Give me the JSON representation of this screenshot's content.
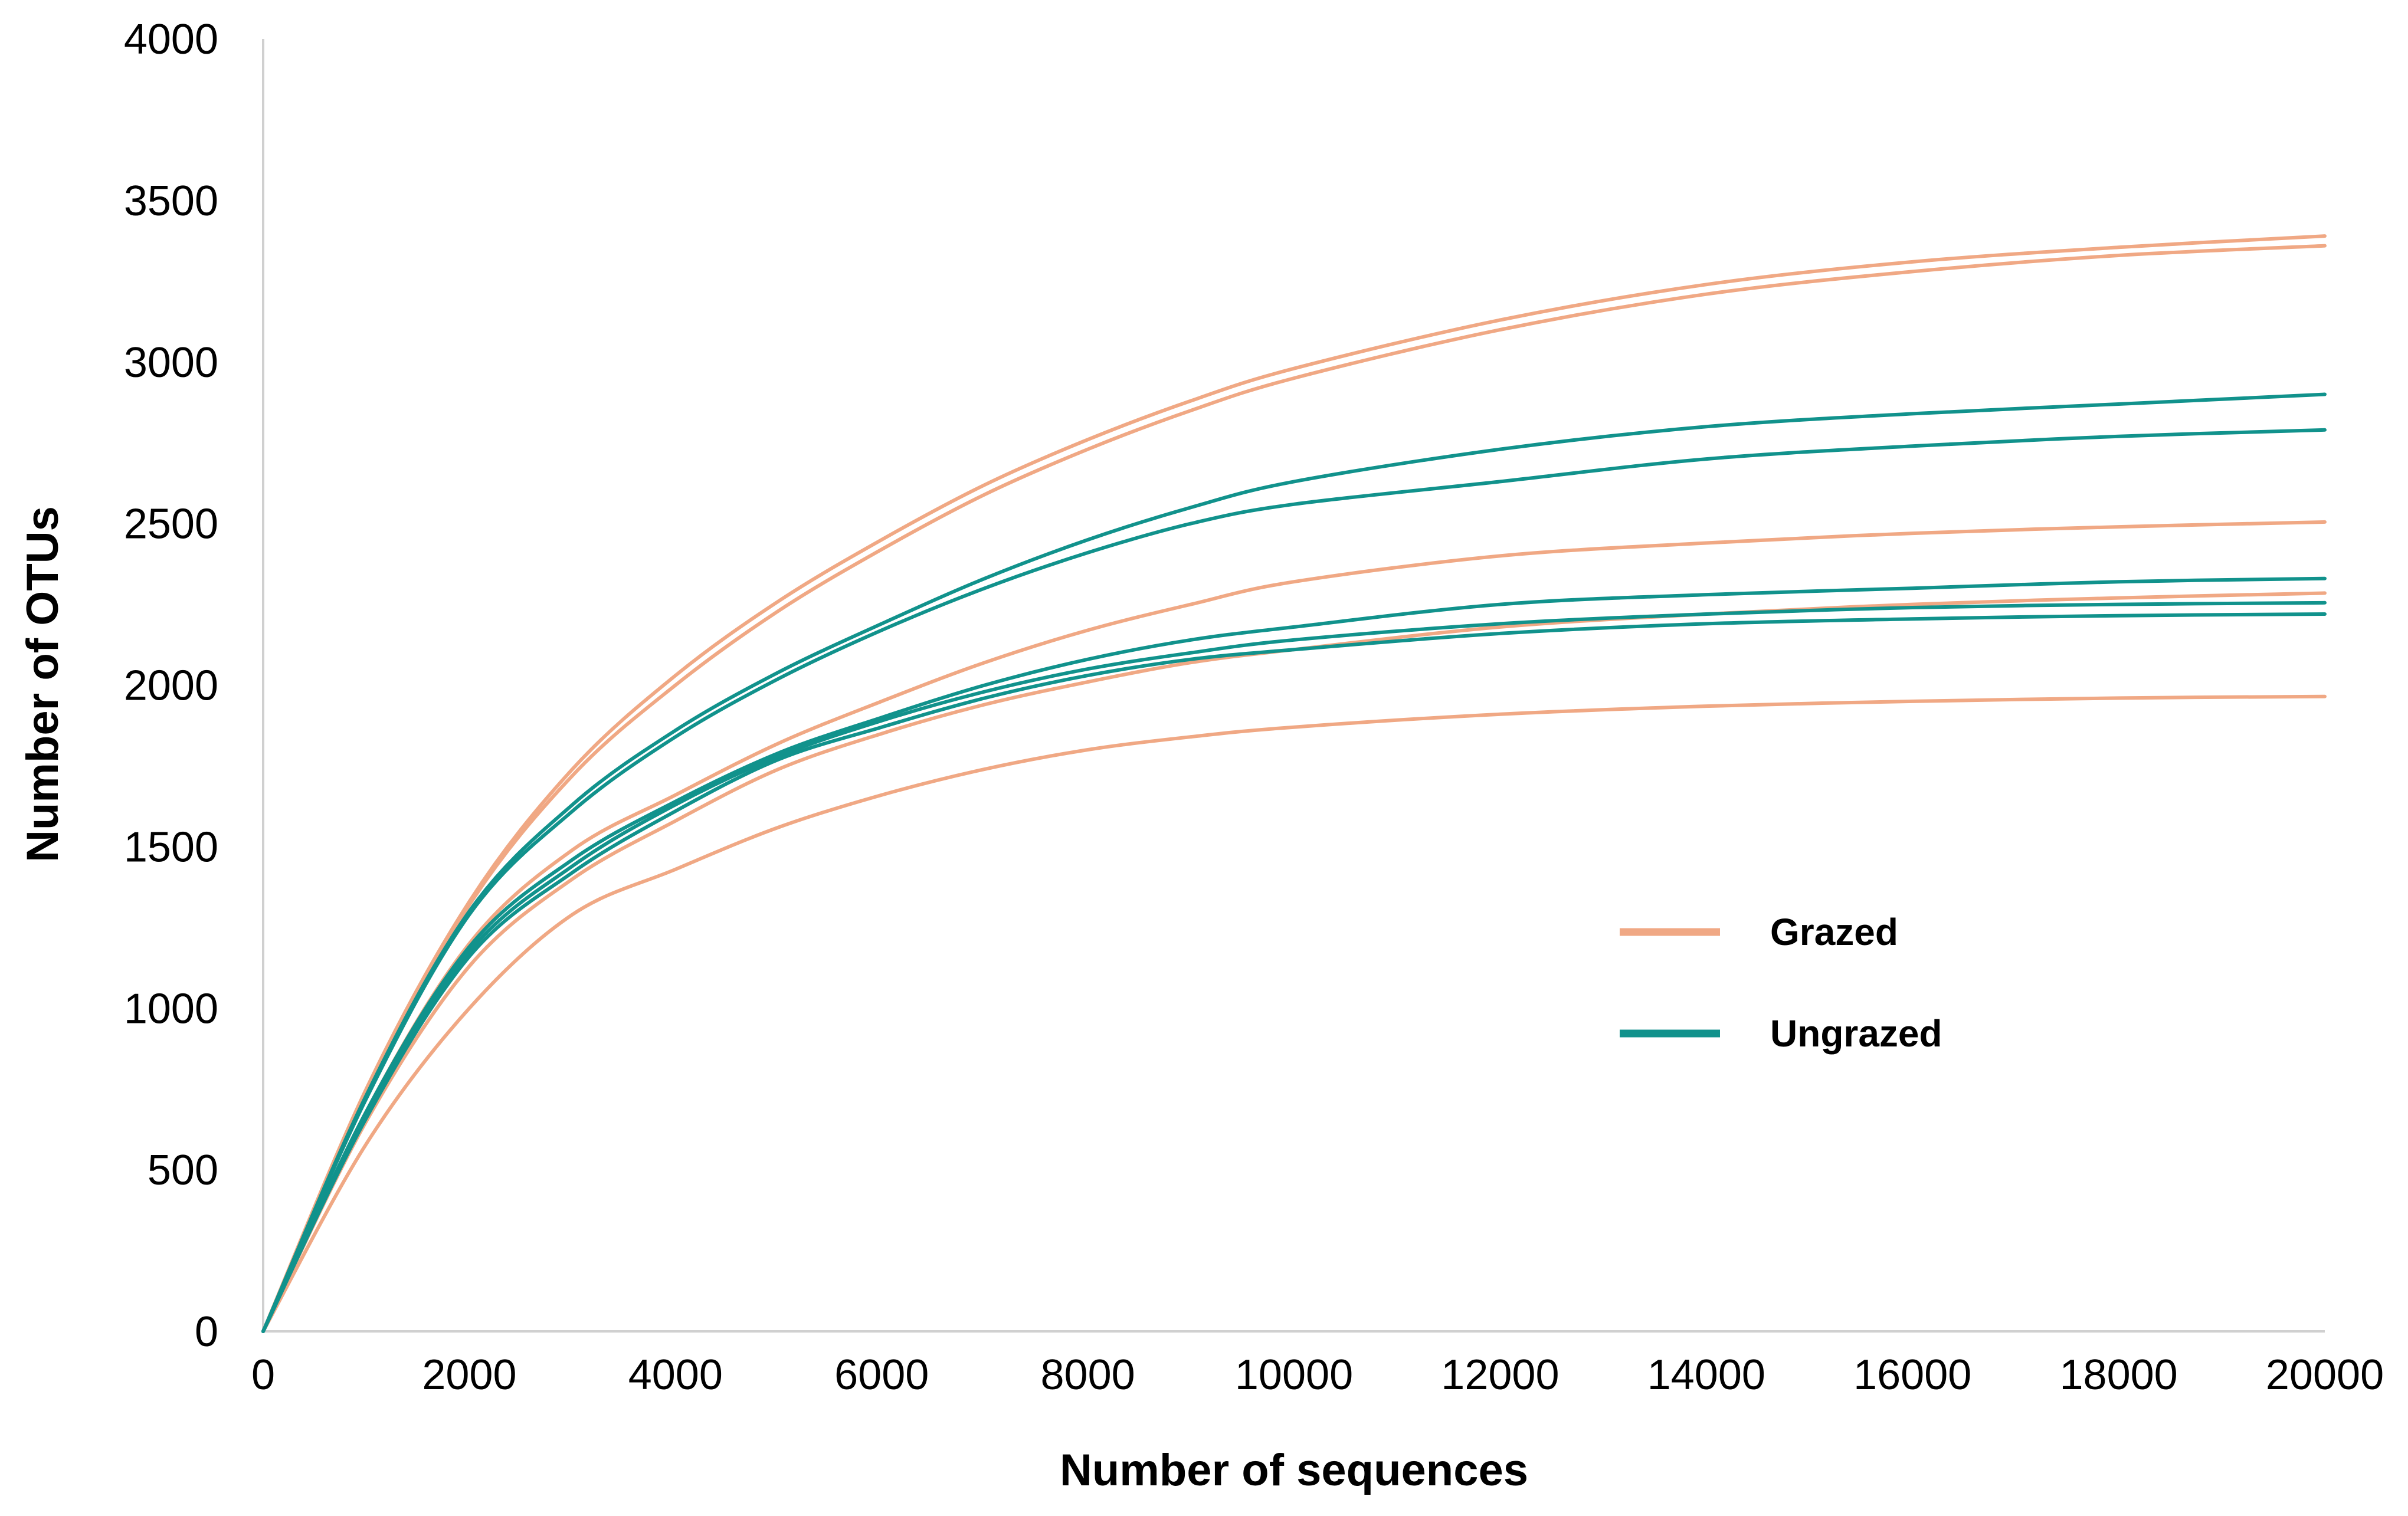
{
  "chart_data": {
    "type": "line",
    "title": "",
    "xlabel": "Number of sequences",
    "ylabel": "Number of OTUs",
    "xlim": [
      0,
      20000
    ],
    "ylim": [
      0,
      4000
    ],
    "x_ticks": [
      "0",
      "2000",
      "4000",
      "6000",
      "8000",
      "10000",
      "12000",
      "14000",
      "16000",
      "18000",
      "20000"
    ],
    "y_ticks": [
      "0",
      "500",
      "1000",
      "1500",
      "2000",
      "2500",
      "3000",
      "3500",
      "4000"
    ],
    "grid": false,
    "legend_position": "center-right",
    "legend": [
      {
        "label": "Grazed",
        "color": "#F0A884"
      },
      {
        "label": "Ungrazed",
        "color": "#11928C"
      }
    ],
    "x": [
      0,
      1000,
      2000,
      3000,
      4000,
      5000,
      6000,
      7000,
      8000,
      9000,
      10000,
      12000,
      14000,
      16000,
      18000,
      20000
    ],
    "series": [
      {
        "group": "Grazed",
        "color": "#F0A884",
        "values": [
          0,
          750,
          1330,
          1740,
          2030,
          2260,
          2450,
          2620,
          2760,
          2880,
          2980,
          3130,
          3240,
          3310,
          3355,
          3390
        ]
      },
      {
        "group": "Grazed",
        "color": "#F0A884",
        "values": [
          0,
          740,
          1320,
          1720,
          2000,
          2230,
          2420,
          2590,
          2730,
          2850,
          2950,
          3100,
          3210,
          3280,
          3330,
          3360
        ]
      },
      {
        "group": "Grazed",
        "color": "#F0A884",
        "values": [
          0,
          680,
          1200,
          1490,
          1660,
          1820,
          1950,
          2070,
          2170,
          2250,
          2320,
          2400,
          2440,
          2470,
          2490,
          2505
        ]
      },
      {
        "group": "Grazed",
        "color": "#F0A884",
        "values": [
          0,
          650,
          1130,
          1400,
          1580,
          1740,
          1850,
          1940,
          2010,
          2070,
          2110,
          2180,
          2220,
          2250,
          2270,
          2285
        ]
      },
      {
        "group": "Grazed",
        "color": "#F0A884",
        "values": [
          0,
          580,
          1000,
          1290,
          1430,
          1560,
          1660,
          1740,
          1800,
          1840,
          1870,
          1910,
          1935,
          1950,
          1960,
          1965
        ]
      },
      {
        "group": "Ungrazed",
        "color": "#11928C",
        "values": [
          0,
          730,
          1300,
          1630,
          1860,
          2040,
          2190,
          2330,
          2450,
          2550,
          2630,
          2730,
          2800,
          2840,
          2870,
          2900
        ]
      },
      {
        "group": "Ungrazed",
        "color": "#11928C",
        "values": [
          0,
          720,
          1290,
          1610,
          1840,
          2020,
          2170,
          2300,
          2410,
          2500,
          2560,
          2630,
          2700,
          2740,
          2770,
          2790
        ]
      },
      {
        "group": "Ungrazed",
        "color": "#11928C",
        "values": [
          0,
          680,
          1190,
          1460,
          1640,
          1790,
          1900,
          2000,
          2080,
          2140,
          2180,
          2250,
          2280,
          2300,
          2320,
          2330
        ]
      },
      {
        "group": "Ungrazed",
        "color": "#11928C",
        "values": [
          0,
          670,
          1175,
          1440,
          1630,
          1780,
          1890,
          1980,
          2050,
          2100,
          2140,
          2190,
          2220,
          2240,
          2250,
          2255
        ]
      },
      {
        "group": "Ungrazed",
        "color": "#11928C",
        "values": [
          0,
          660,
          1160,
          1420,
          1610,
          1770,
          1870,
          1960,
          2030,
          2080,
          2110,
          2160,
          2190,
          2205,
          2215,
          2220
        ]
      }
    ]
  }
}
